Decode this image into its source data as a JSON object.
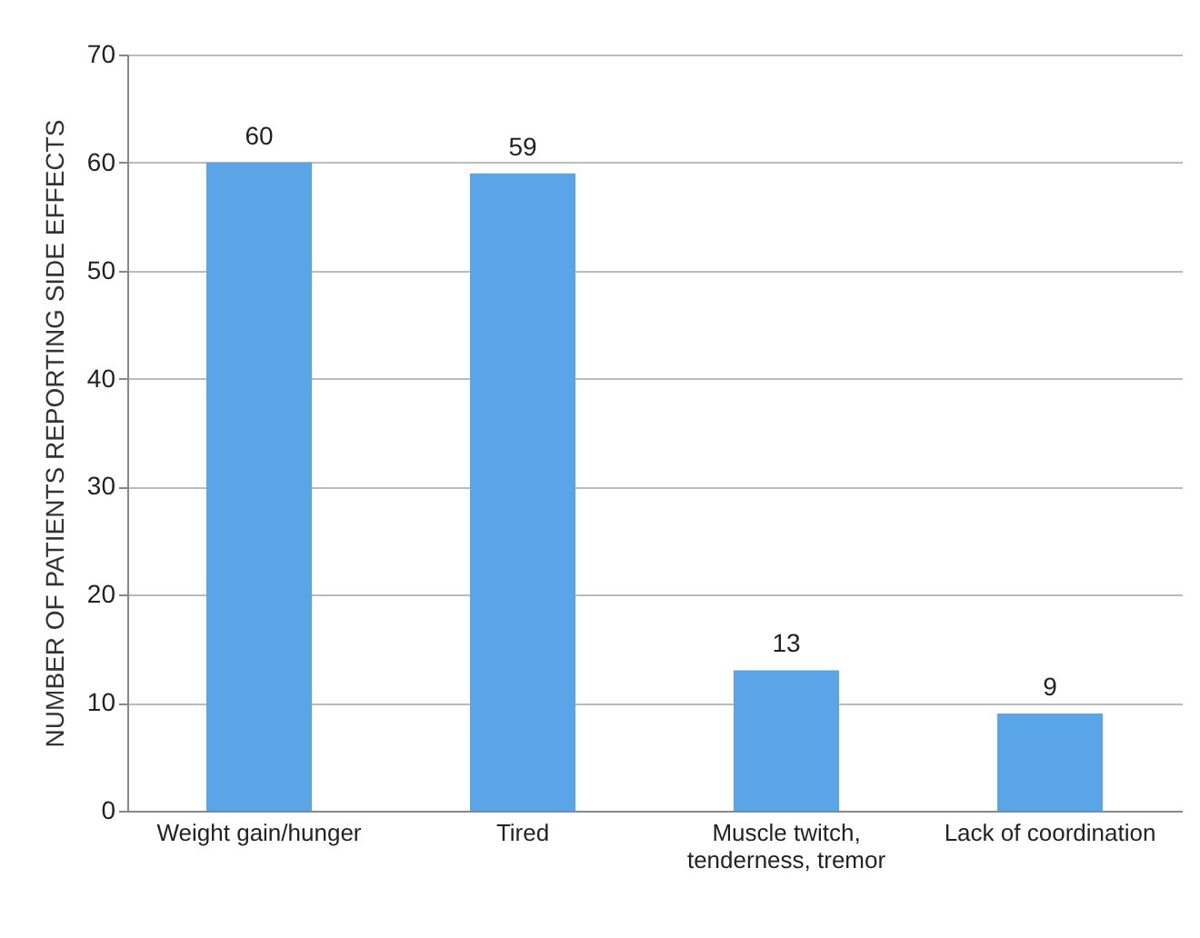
{
  "chart_data": {
    "type": "bar",
    "ylabel": "NUMBER OF PATIENTS REPORTING SIDE EFFECTS",
    "categories": [
      "Weight gain/hunger",
      "Tired",
      "Muscle twitch, tenderness, tremor",
      "Lack of coordination"
    ],
    "values": [
      60,
      59,
      13,
      9
    ],
    "color": "#5aa5e8",
    "ylim": [
      0,
      70
    ],
    "yticks": [
      0,
      10,
      20,
      30,
      40,
      50,
      60,
      70
    ],
    "grid": "y",
    "data_labels": true
  }
}
